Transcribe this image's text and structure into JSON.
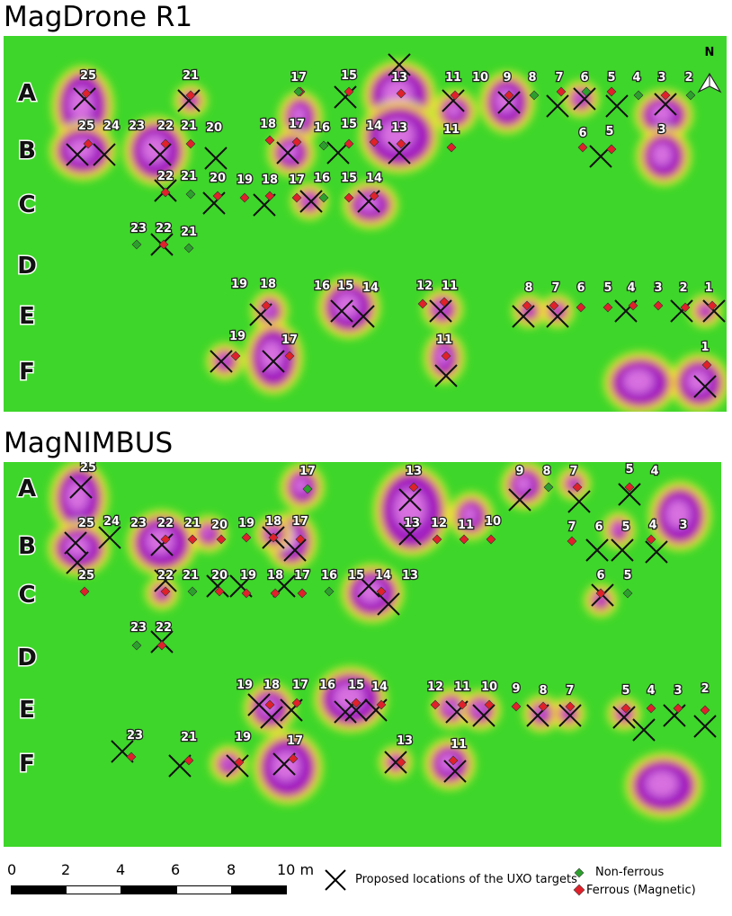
{
  "panels": [
    {
      "id": "r1",
      "title": "MagDrone R1",
      "rows": [
        "A",
        "B",
        "C",
        "D",
        "E",
        "F"
      ],
      "labels": [
        [
          "A",
          "25"
        ],
        [
          "A",
          "21"
        ],
        [
          "A",
          "17"
        ],
        [
          "A",
          "15"
        ],
        [
          "A",
          "13"
        ],
        [
          "A",
          "11"
        ],
        [
          "A",
          "10"
        ],
        [
          "A",
          "9"
        ],
        [
          "A",
          "8"
        ],
        [
          "A",
          "7"
        ],
        [
          "A",
          "6"
        ],
        [
          "A",
          "5"
        ],
        [
          "A",
          "4"
        ],
        [
          "A",
          "3"
        ],
        [
          "A",
          "2"
        ],
        [
          "B",
          "25"
        ],
        [
          "B",
          "24"
        ],
        [
          "B",
          "23"
        ],
        [
          "B",
          "22"
        ],
        [
          "B",
          "21"
        ],
        [
          "B",
          "20"
        ],
        [
          "B",
          "18"
        ],
        [
          "B",
          "17"
        ],
        [
          "B",
          "16"
        ],
        [
          "B",
          "15"
        ],
        [
          "B",
          "14"
        ],
        [
          "B",
          "13"
        ],
        [
          "B",
          "11"
        ],
        [
          "B",
          "6"
        ],
        [
          "B",
          "5"
        ],
        [
          "B",
          "3"
        ],
        [
          "C",
          "22"
        ],
        [
          "C",
          "21"
        ],
        [
          "C",
          "20"
        ],
        [
          "C",
          "19"
        ],
        [
          "C",
          "18"
        ],
        [
          "C",
          "17"
        ],
        [
          "C",
          "16"
        ],
        [
          "C",
          "15"
        ],
        [
          "C",
          "14"
        ],
        [
          "D",
          "23"
        ],
        [
          "D",
          "22"
        ],
        [
          "D",
          "21"
        ],
        [
          "E",
          "19"
        ],
        [
          "E",
          "18"
        ],
        [
          "E",
          "16"
        ],
        [
          "E",
          "15"
        ],
        [
          "E",
          "14"
        ],
        [
          "E",
          "12"
        ],
        [
          "E",
          "11"
        ],
        [
          "E",
          "8"
        ],
        [
          "E",
          "7"
        ],
        [
          "E",
          "6"
        ],
        [
          "E",
          "5"
        ],
        [
          "E",
          "4"
        ],
        [
          "E",
          "3"
        ],
        [
          "E",
          "2"
        ],
        [
          "E",
          "1"
        ],
        [
          "F",
          "19"
        ],
        [
          "F",
          "17"
        ],
        [
          "F",
          "11"
        ],
        [
          "F",
          "1"
        ]
      ],
      "north_label": "N"
    },
    {
      "id": "nimbus",
      "title": "MagNIMBUS",
      "rows": [
        "A",
        "B",
        "C",
        "D",
        "E",
        "F"
      ],
      "labels": [
        [
          "A",
          "25"
        ],
        [
          "A",
          "17"
        ],
        [
          "A",
          "13"
        ],
        [
          "A",
          "9"
        ],
        [
          "A",
          "8"
        ],
        [
          "A",
          "7"
        ],
        [
          "A",
          "5"
        ],
        [
          "A",
          "4"
        ],
        [
          "B",
          "25"
        ],
        [
          "B",
          "24"
        ],
        [
          "B",
          "23"
        ],
        [
          "B",
          "22"
        ],
        [
          "B",
          "21"
        ],
        [
          "B",
          "20"
        ],
        [
          "B",
          "19"
        ],
        [
          "B",
          "18"
        ],
        [
          "B",
          "17"
        ],
        [
          "B",
          "13"
        ],
        [
          "B",
          "12"
        ],
        [
          "B",
          "11"
        ],
        [
          "B",
          "10"
        ],
        [
          "B",
          "7"
        ],
        [
          "B",
          "6"
        ],
        [
          "B",
          "5"
        ],
        [
          "B",
          "4"
        ],
        [
          "B",
          "3"
        ],
        [
          "C",
          "25"
        ],
        [
          "C",
          "22"
        ],
        [
          "C",
          "21"
        ],
        [
          "C",
          "20"
        ],
        [
          "C",
          "19"
        ],
        [
          "C",
          "18"
        ],
        [
          "C",
          "17"
        ],
        [
          "C",
          "16"
        ],
        [
          "C",
          "15"
        ],
        [
          "C",
          "14"
        ],
        [
          "C",
          "13"
        ],
        [
          "C",
          "6"
        ],
        [
          "C",
          "5"
        ],
        [
          "D",
          "23"
        ],
        [
          "D",
          "22"
        ],
        [
          "E",
          "19"
        ],
        [
          "E",
          "18"
        ],
        [
          "E",
          "17"
        ],
        [
          "E",
          "16"
        ],
        [
          "E",
          "15"
        ],
        [
          "E",
          "14"
        ],
        [
          "E",
          "12"
        ],
        [
          "E",
          "11"
        ],
        [
          "E",
          "10"
        ],
        [
          "E",
          "9"
        ],
        [
          "E",
          "8"
        ],
        [
          "E",
          "7"
        ],
        [
          "E",
          "5"
        ],
        [
          "E",
          "4"
        ],
        [
          "E",
          "3"
        ],
        [
          "E",
          "2"
        ],
        [
          "F",
          "23"
        ],
        [
          "F",
          "21"
        ],
        [
          "F",
          "19"
        ],
        [
          "F",
          "17"
        ],
        [
          "F",
          "13"
        ],
        [
          "F",
          "11"
        ]
      ]
    }
  ],
  "scale": {
    "ticks": [
      "0",
      "2",
      "4",
      "6",
      "8",
      "10 m"
    ]
  },
  "legend": {
    "proposed": "Proposed locations of the UXO targets",
    "nonferrous": "Non-ferrous",
    "ferrous": "Ferrous (Magnetic)",
    "colors": {
      "nonferrous": "#2ca02c",
      "ferrous": "#e0202a",
      "anomaly_high": "#a020c0",
      "background": "#33dd22"
    }
  }
}
